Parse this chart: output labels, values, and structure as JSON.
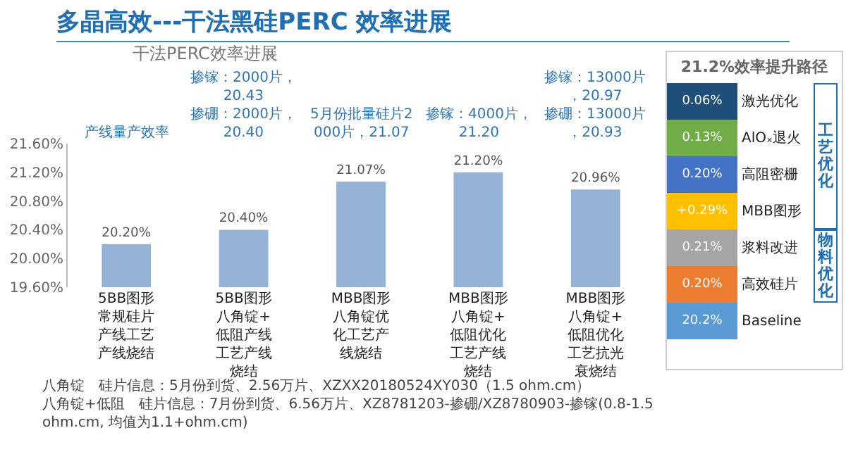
{
  "chart_data": [
    {
      "type": "bar",
      "title": "多晶高效---干法黑硅PERC 效率进展",
      "subtitle": "干法PERC效率进展",
      "categories": [
        "5BB图形常规硅片产线工艺产线烧结",
        "5BB图形八角锭+低阻产线工艺产线烧结",
        "MBB图形八角锭优化工艺产线烧结",
        "MBB图形八角锭+低阻优化工艺产线烧结",
        "MBB图形八角锭+低阻优化工艺抗光衰烧结"
      ],
      "values": [
        20.2,
        20.4,
        21.07,
        21.2,
        20.96
      ],
      "value_labels": [
        "20.20%",
        "20.40%",
        "21.07%",
        "21.20%",
        "20.96%"
      ],
      "color": "#95b3d7",
      "ylim": [
        19.6,
        21.6
      ],
      "yticks": [
        {
          "value": 19.6,
          "label": "19.60%"
        },
        {
          "value": 20.0,
          "label": "20.00%"
        },
        {
          "value": 20.4,
          "label": "20.40%"
        },
        {
          "value": 20.8,
          "label": "20.80%"
        },
        {
          "value": 21.2,
          "label": "21.20%"
        },
        {
          "value": 21.6,
          "label": "21.60%"
        }
      ],
      "annotations": [
        "产线量产效率",
        "掺镓：2000片，20.43\n掺硼：2000片，20.40",
        "5月份批量硅片2000片，21.07",
        "掺镓：4000片，21.20",
        "掺镓：13000片，20.97\n掺硼：13000片，20.93",
        "八角锭　硅片信息：5月份到货、2.56万片、XZXX20180524XY030（1.5 ohm.cm）",
        "八角锭+低阻　硅片信息：7月份到货、6.56万片、XZ8781203-掺硼/XZ8780903-掺镓(0.8-1.5 ohm.cm, 均值为1.1+ohm.cm)"
      ]
    },
    {
      "type": "other",
      "title": "21.2%效率提升路径",
      "categories": [
        "激光优化",
        "AlOₓ退火",
        "高阻密栅",
        "MBB图形",
        "浆料改进",
        "高效硅片",
        "Baseline"
      ],
      "value_labels": [
        "0.06%",
        "0.13%",
        "0.20%",
        "+0.29%",
        "0.21%",
        "0.20%",
        "20.2%"
      ],
      "colors": [
        "#1f4e79",
        "#70ad47",
        "#4472c4",
        "#ffc000",
        "#a5a5a5",
        "#ed7d31",
        "#5b9bd5"
      ],
      "annotations": [
        "工艺优化",
        "物料优化"
      ]
    }
  ]
}
